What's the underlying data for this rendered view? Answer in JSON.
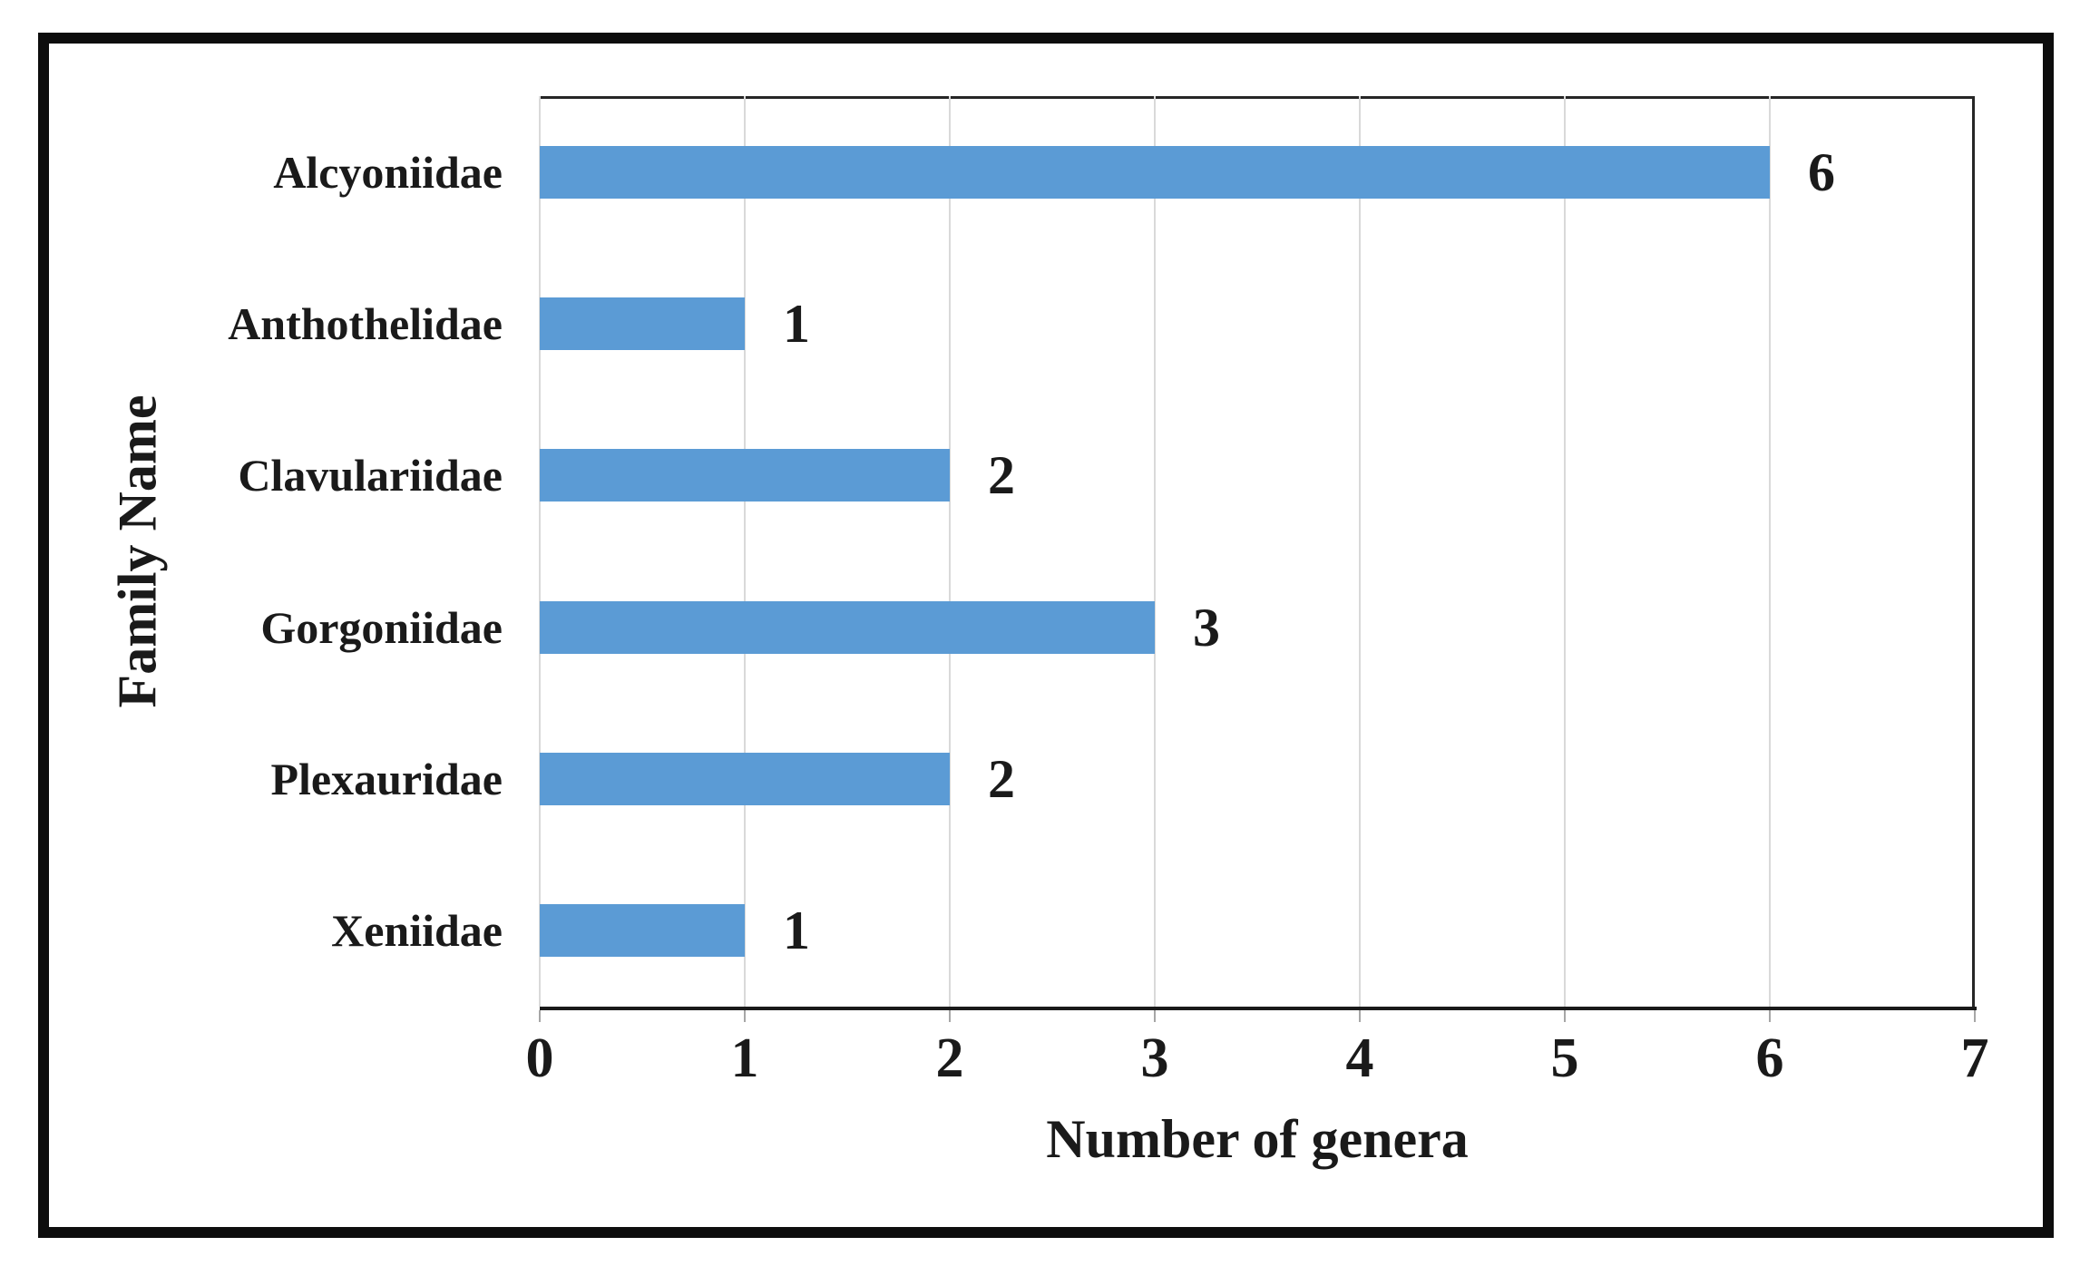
{
  "chart_data": {
    "type": "bar",
    "orientation": "horizontal",
    "title": "",
    "categories": [
      "Alcyoniidae",
      "Anthothelidae",
      "Clavulariidae",
      "Gorgoniidae",
      "Plexauridae",
      "Xeniidae"
    ],
    "values": [
      6,
      1,
      2,
      3,
      2,
      1
    ],
    "data_labels": [
      "6",
      "1",
      "2",
      "3",
      "2",
      "1"
    ],
    "xlabel": "Number of genera",
    "ylabel": "Family Name",
    "xlim": [
      0,
      7
    ],
    "xticks": [
      "0",
      "1",
      "2",
      "3",
      "4",
      "5",
      "6",
      "7"
    ],
    "grid": "vertical-gridlines-on",
    "legend": "none",
    "colors": {
      "bar": "#5b9bd5",
      "gridline": "#d9d9d9",
      "axis_line": "#1a1a1a",
      "plot_border": "#262626",
      "outer_border": "#0d0d0d",
      "text": "#1a1a1a",
      "background": "#ffffff"
    }
  }
}
